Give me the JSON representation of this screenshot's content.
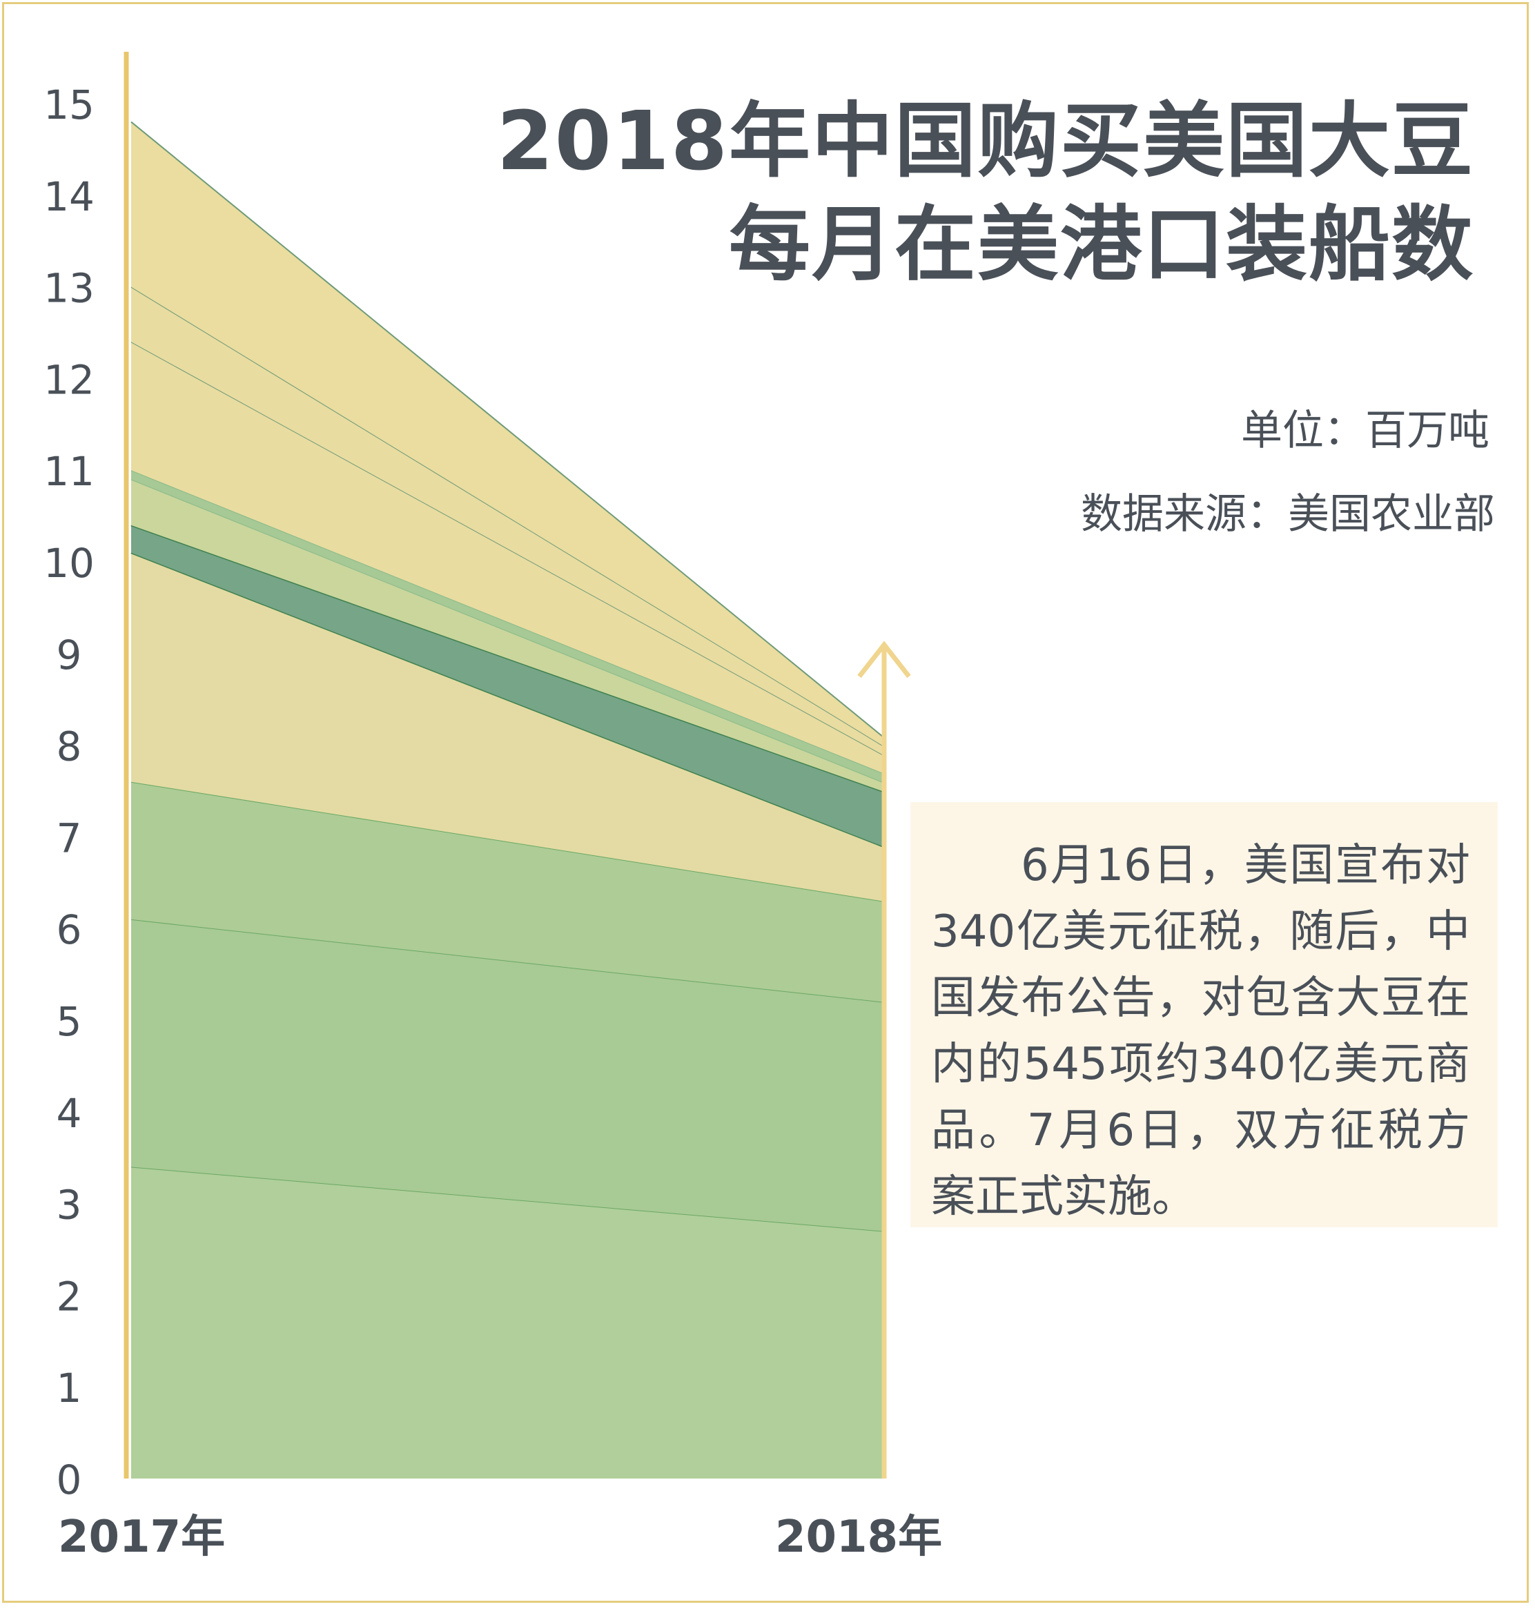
{
  "title": {
    "line1": "2018年中国购买美国大豆",
    "line2": "每月在美港口装船数"
  },
  "unit": "单位：百万吨",
  "source": "数据来源：美国农业部",
  "note": "6月16日，美国宣布对340亿美元征税，随后，中国发布公告，对包含大豆在内的545项约340亿美元商品。7月6日，双方征税方案正式实施。",
  "colors": {
    "frame": "#e6cc7e",
    "axis": "#e8c66a",
    "axis_right": "#f0d58e",
    "text": "#4a5058",
    "note_bg": "#fdf6e7"
  },
  "chart_data": {
    "type": "area",
    "x": [
      "2017年",
      "2018年"
    ],
    "y_ticks": [
      0,
      1,
      2,
      3,
      4,
      5,
      6,
      7,
      8,
      9,
      10,
      11,
      12,
      13,
      14,
      15
    ],
    "ylim": [
      0,
      15
    ],
    "grid": false,
    "series": [
      {
        "values": [
          3.4,
          2.7
        ],
        "color": "#b0cf9a",
        "line": "#6aa865"
      },
      {
        "values": [
          6.1,
          5.2
        ],
        "color": "#a8ca94",
        "line": "#6aa865"
      },
      {
        "values": [
          7.6,
          6.3
        ],
        "color": "#adcc96",
        "line": "#6aa865"
      },
      {
        "values": [
          10.1,
          6.9
        ],
        "color": "#e3dba3",
        "line": "#3f8050"
      },
      {
        "values": [
          10.4,
          7.5
        ],
        "color": "#76a587",
        "line": "#3f8050"
      },
      {
        "values": [
          10.9,
          7.6
        ],
        "color": "#cad69c",
        "line": "#8aba8a"
      },
      {
        "values": [
          11.0,
          7.7
        ],
        "color": "#a6c995",
        "line": "#8aba8a"
      },
      {
        "values": [
          12.4,
          7.9
        ],
        "color": "#e9dca0",
        "line": "#6f9a7a"
      },
      {
        "values": [
          13.0,
          8.0
        ],
        "color": "#e9dca0",
        "line": "#6f9a7a"
      },
      {
        "values": [
          14.8,
          8.1
        ],
        "color": "#eadd9f",
        "line": "#6f9a7a"
      }
    ]
  }
}
